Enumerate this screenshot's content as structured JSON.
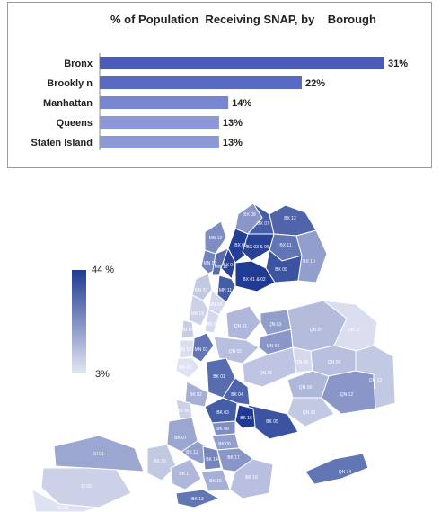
{
  "chart_data": {
    "type": "bar",
    "orientation": "horizontal",
    "title": "% of Population  Receiving SNAP, by    Borough",
    "categories": [
      "Bronx",
      "Brookly n",
      "Manhattan",
      "Queens",
      "Staten Island"
    ],
    "values": [
      31,
      22,
      14,
      13,
      13
    ],
    "value_labels": [
      "31%",
      "22%",
      "14%",
      "13%",
      "13%"
    ],
    "xlim": [
      0,
      31
    ],
    "grid": false,
    "legend": "none"
  },
  "map": {
    "legend": {
      "max_label": "44 %",
      "min_label": "3%",
      "max_value": 44,
      "min_value": 3
    },
    "colors": {
      "high": "#1f3a93",
      "low": "#e4e6f4"
    },
    "districts": [
      {
        "label": "BX 08",
        "value": 22
      },
      {
        "label": "BX 07",
        "value": 36
      },
      {
        "label": "BX 12",
        "value": 34
      },
      {
        "label": "BX 05",
        "value": 43
      },
      {
        "label": "BX 04",
        "value": 42
      },
      {
        "label": "BX 11",
        "value": 30
      },
      {
        "label": "BX 03 & 06",
        "value": 42
      },
      {
        "label": "BX 09",
        "value": 38
      },
      {
        "label": "BX 10",
        "value": 20
      },
      {
        "label": "BX 01 & 02",
        "value": 44
      },
      {
        "label": "MN 12",
        "value": 24
      },
      {
        "label": "MN 09",
        "value": 26
      },
      {
        "label": "MN 10",
        "value": 32
      },
      {
        "label": "MN 11",
        "value": 36
      },
      {
        "label": "MN 07",
        "value": 10
      },
      {
        "label": "MN 08",
        "value": 6
      },
      {
        "label": "MN 05",
        "value": 8
      },
      {
        "label": "MN 06",
        "value": 6
      },
      {
        "label": "MN 04",
        "value": 9
      },
      {
        "label": "MN 03",
        "value": 30
      },
      {
        "label": "MN 02",
        "value": 5
      },
      {
        "label": "MN 01",
        "value": 4
      },
      {
        "label": "QN 01",
        "value": 14
      },
      {
        "label": "QN 03",
        "value": 20
      },
      {
        "label": "QN 04",
        "value": 22
      },
      {
        "label": "QN 02",
        "value": 12
      },
      {
        "label": "QN 05",
        "value": 11
      },
      {
        "label": "QN 06",
        "value": 6
      },
      {
        "label": "QN 07",
        "value": 13
      },
      {
        "label": "QN 08",
        "value": 12
      },
      {
        "label": "QN 09",
        "value": 14
      },
      {
        "label": "QN 10",
        "value": 10
      },
      {
        "label": "QN 11",
        "value": 5
      },
      {
        "label": "QN 12",
        "value": 22
      },
      {
        "label": "QN 13",
        "value": 10
      },
      {
        "label": "QN 14",
        "value": 30
      },
      {
        "label": "BK 01",
        "value": 32
      },
      {
        "label": "BK 02",
        "value": 16
      },
      {
        "label": "BK 03",
        "value": 36
      },
      {
        "label": "BK 04",
        "value": 34
      },
      {
        "label": "BK 05",
        "value": 38
      },
      {
        "label": "BK 06",
        "value": 8
      },
      {
        "label": "BK 07",
        "value": 18
      },
      {
        "label": "BK 08",
        "value": 24
      },
      {
        "label": "BK 09",
        "value": 20
      },
      {
        "label": "BK 10",
        "value": 10
      },
      {
        "label": "BK 11",
        "value": 14
      },
      {
        "label": "BK 12",
        "value": 20
      },
      {
        "label": "BK 13",
        "value": 30
      },
      {
        "label": "BK 14",
        "value": 26
      },
      {
        "label": "BK 15",
        "value": 16
      },
      {
        "label": "BK 16",
        "value": 44
      },
      {
        "label": "BK 17",
        "value": 22
      },
      {
        "label": "BK 18",
        "value": 12
      },
      {
        "label": "SI 01",
        "value": 18
      },
      {
        "label": "SI 02",
        "value": 8
      },
      {
        "label": "SI 03",
        "value": 4
      }
    ]
  }
}
